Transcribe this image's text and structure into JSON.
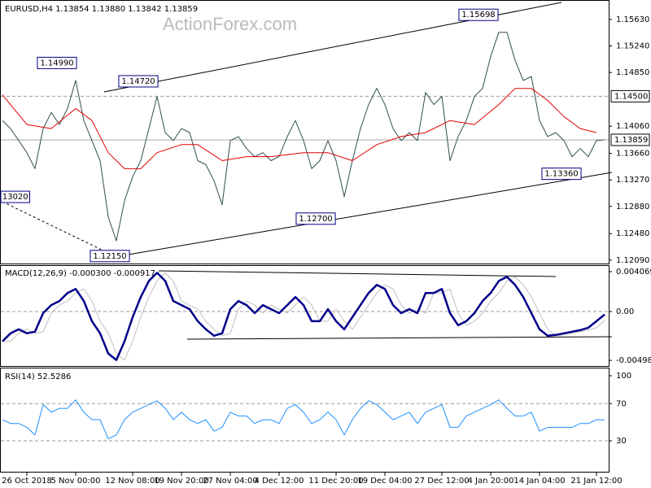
{
  "watermark": "ActionForex.com",
  "chart_data": [
    {
      "type": "line",
      "title": "EURUSD,H4  1.13854 1.13880 1.13842 1.13859",
      "xlim": [
        -0.3,
        74.5
      ],
      "ylim": [
        1.1204,
        1.1588
      ],
      "yticks": [
        {
          "value": 1.1563,
          "label": "1.15630"
        },
        {
          "value": 1.1524,
          "label": "1.15240"
        },
        {
          "value": 1.1485,
          "label": "1.14850"
        },
        {
          "value": 1.1406,
          "label": "1.14060"
        },
        {
          "value": 1.1366,
          "label": "1.13660"
        },
        {
          "value": 1.1327,
          "label": "1.13270"
        },
        {
          "value": 1.1288,
          "label": "1.12880"
        },
        {
          "value": 1.1248,
          "label": "1.12480"
        },
        {
          "value": 1.1209,
          "label": "1.12090"
        }
      ],
      "levels": [
        {
          "value": 1.145,
          "label": "1.14500"
        }
      ],
      "last": {
        "value": 1.13859,
        "label": "1.13859"
      },
      "series": [
        {
          "color": "#2f4f4f",
          "width": 1,
          "x": [
            0,
            1,
            2,
            3,
            4,
            5,
            6,
            7,
            8,
            9,
            10,
            11,
            12,
            13,
            14,
            15,
            16,
            17,
            18,
            19,
            20,
            21,
            22,
            23,
            24,
            25,
            26,
            27,
            28,
            29,
            30,
            31,
            32,
            33,
            34,
            35,
            36,
            37,
            38,
            39,
            40,
            41,
            42,
            43,
            44,
            45,
            46,
            47,
            48,
            49,
            50,
            51,
            52,
            53,
            54,
            55,
            56,
            57,
            58,
            59,
            60,
            61,
            62,
            63,
            64,
            65,
            66,
            67,
            68,
            69,
            70,
            71,
            72,
            73,
            74
          ],
          "values": [
            1.14143,
            1.14025,
            1.13848,
            1.13671,
            1.13435,
            1.14025,
            1.14261,
            1.14084,
            1.1432,
            1.14733,
            1.14143,
            1.13848,
            1.13553,
            1.12727,
            1.12373,
            1.12963,
            1.13317,
            1.13553,
            1.14025,
            1.14497,
            1.13966,
            1.13848,
            1.14025,
            1.13966,
            1.13553,
            1.13494,
            1.13258,
            1.12904,
            1.13848,
            1.13907,
            1.1373,
            1.13612,
            1.13671,
            1.13553,
            1.13612,
            1.13907,
            1.14143,
            1.13848,
            1.13435,
            1.13553,
            1.13848,
            1.13553,
            1.13022,
            1.13553,
            1.14025,
            1.14379,
            1.14615,
            1.14379,
            1.14025,
            1.13848,
            1.13966,
            1.13848,
            1.14556,
            1.14379,
            1.14497,
            1.13553,
            1.13907,
            1.14143,
            1.14497,
            1.14615,
            1.15087,
            1.15441,
            1.15441,
            1.15028,
            1.14733,
            1.14792,
            1.14143,
            1.13907,
            1.13966,
            1.13848,
            1.13612,
            1.1373,
            1.13612,
            1.13848,
            1.13859
          ]
        },
        {
          "color": "#e00000",
          "width": 1,
          "x": [
            0,
            3,
            6,
            9,
            11,
            13,
            15,
            17,
            19,
            22,
            24,
            27,
            30,
            33,
            37,
            40,
            43,
            46,
            49,
            52,
            55,
            58,
            61,
            63,
            65,
            67,
            69,
            71,
            73
          ],
          "values": [
            1.14521,
            1.14084,
            1.14025,
            1.1432,
            1.14143,
            1.13671,
            1.13435,
            1.13435,
            1.13671,
            1.13789,
            1.13789,
            1.13553,
            1.13612,
            1.13612,
            1.13671,
            1.13671,
            1.13553,
            1.13789,
            1.13907,
            1.13966,
            1.14143,
            1.14084,
            1.14379,
            1.14615,
            1.14615,
            1.14438,
            1.14202,
            1.14025,
            1.13966
          ]
        }
      ],
      "annotations": [
        {
          "text": "1.14990",
          "x": 6.7,
          "y": 1.1499
        },
        {
          "text": "1.14720",
          "x": 16.7,
          "y": 1.1472
        },
        {
          "text": "1.15698",
          "x": 58.5,
          "y": 1.15698
        },
        {
          "text": "13020",
          "x": 1.5,
          "y": 1.1302
        },
        {
          "text": "1.12150",
          "x": 13.2,
          "y": 1.1215
        },
        {
          "text": "1.12700",
          "x": 38.5,
          "y": 1.127
        },
        {
          "text": "1.13360",
          "x": 68.7,
          "y": 1.1336
        }
      ]
    },
    {
      "type": "line",
      "title": "MACD(12,26,9) -0.000300 -0.000917",
      "xlim": [
        -0.3,
        74.5
      ],
      "ylim": [
        -0.00539,
        0.004567
      ],
      "yticks": [
        0.004069,
        {
          "value": 0,
          "label": "0.00"
        },
        -0.004981
      ],
      "levels": [
        0
      ],
      "series": [
        {
          "color": "#c0c0c0",
          "width": 1,
          "x": [
            0,
            1,
            2,
            3,
            4,
            5,
            6,
            7,
            8,
            9,
            10,
            11,
            12,
            13,
            14,
            15,
            16,
            17,
            18,
            19,
            20,
            21,
            22,
            23,
            24,
            25,
            26,
            27,
            28,
            29,
            30,
            31,
            32,
            33,
            34,
            35,
            36,
            37,
            38,
            39,
            40,
            41,
            42,
            43,
            44,
            45,
            46,
            47,
            48,
            49,
            50,
            51,
            52,
            53,
            54,
            55,
            56,
            57,
            58,
            59,
            60,
            61,
            62,
            63,
            64,
            65,
            66,
            67,
            68,
            69,
            70,
            71,
            72,
            73,
            74
          ],
          "values": [
            -0.003045,
            -0.003045,
            -0.002222,
            -0.001811,
            -0.002222,
            -0.002058,
            -0.000165,
            0.000658,
            0.00107,
            0.001893,
            0.002304,
            0.00107,
            -0.000988,
            -0.002222,
            -0.00428,
            -0.004938,
            -0.003045,
            -0.000576,
            0.001481,
            0.003127,
            0.00395,
            0.003127,
            0.00107,
            0.000658,
            0.000247,
            -0.000988,
            -0.001811,
            -0.002469,
            -0.002222,
            0.000247,
            0.00107,
            0.000658,
            -0.000165,
            0.000658,
            0.000247,
            -0.000165,
            0.000658,
            0.001481,
            0.000658,
            -0.000988,
            -0.000988,
            0.000247,
            -0.000988,
            -0.001811,
            -0.000576,
            0.000658,
            0.001893,
            0.002716,
            0.002304,
            0.000658,
            -0.000165,
            0.000247,
            -0.000165,
            0.001893,
            0.001893,
            0.002304,
            -0.000165,
            -0.001399,
            -0.000988,
            -0.000165,
            0.00107,
            0.001893,
            0.003127,
            0.003539,
            0.002716,
            0.001481,
            -0.000165,
            -0.001811,
            -0.002469,
            -0.002387,
            -0.002222,
            -0.002058,
            -0.001893,
            -0.001646,
            -0.000917
          ]
        },
        {
          "color": "#00008b",
          "width": 2.5,
          "x": [
            0,
            1,
            2,
            3,
            4,
            5,
            6,
            7,
            8,
            9,
            10,
            11,
            12,
            13,
            14,
            15,
            16,
            17,
            18,
            19,
            20,
            21,
            22,
            23,
            24,
            25,
            26,
            27,
            28,
            29,
            30,
            31,
            32,
            33,
            34,
            35,
            36,
            37,
            38,
            39,
            40,
            41,
            42,
            43,
            44,
            45,
            46,
            47,
            48,
            49,
            50,
            51,
            52,
            53,
            54,
            55,
            56,
            57,
            58,
            59,
            60,
            61,
            62,
            63,
            64,
            65,
            66,
            67,
            68,
            69,
            70,
            71,
            72,
            73,
            74
          ],
          "values": [
            -0.003045,
            -0.002222,
            -0.001811,
            -0.002222,
            -0.002058,
            -0.000165,
            0.000658,
            0.00107,
            0.001893,
            0.002304,
            0.00107,
            -0.000988,
            -0.002222,
            -0.00428,
            -0.004938,
            -0.003045,
            -0.000576,
            0.001481,
            0.003127,
            0.00395,
            0.003127,
            0.00107,
            0.000658,
            0.000247,
            -0.000988,
            -0.001811,
            -0.002469,
            -0.002222,
            0.000247,
            0.00107,
            0.000658,
            -0.000165,
            0.000658,
            0.000247,
            -0.000165,
            0.000658,
            0.001481,
            0.000658,
            -0.000988,
            -0.000988,
            0.000247,
            -0.000988,
            -0.001811,
            -0.000576,
            0.000658,
            0.001893,
            0.002716,
            0.002304,
            0.000658,
            -0.000165,
            0.000247,
            -0.000165,
            0.001893,
            0.001893,
            0.002304,
            -0.000165,
            -0.001399,
            -0.000988,
            -0.000165,
            0.00107,
            0.001893,
            0.003127,
            0.003539,
            0.002716,
            0.001481,
            -0.000165,
            -0.001811,
            -0.002469,
            -0.002387,
            -0.002222,
            -0.002058,
            -0.001893,
            -0.001646,
            -0.000988,
            -0.0003
          ]
        }
      ]
    },
    {
      "type": "line",
      "title": "RSI(14) 52.5286",
      "xlim": [
        -0.3,
        74.5
      ],
      "ylim": [
        -1.5,
        106.1
      ],
      "yticks": [
        100,
        70,
        30
      ],
      "levels": [
        70,
        30
      ],
      "xticks": [
        {
          "value": 3,
          "label": "26 Oct 2018"
        },
        {
          "value": 9,
          "label": "5 Nov 00:00"
        },
        {
          "value": 16,
          "label": "12 Nov 08:00"
        },
        {
          "value": 22,
          "label": "19 Nov 20:00"
        },
        {
          "value": 28,
          "label": "27 Nov 04:00"
        },
        {
          "value": 34,
          "label": "4 Dec 12:00"
        },
        {
          "value": 41,
          "label": "11 Dec 20:00"
        },
        {
          "value": 47,
          "label": "19 Dec 04:00"
        },
        {
          "value": 54,
          "label": "27 Dec 12:00"
        },
        {
          "value": 60,
          "label": "4 Jan 20:00"
        },
        {
          "value": 66,
          "label": "14 Jan 04:00"
        },
        {
          "value": 73,
          "label": "21 Jan 12:00"
        }
      ],
      "series": [
        {
          "color": "#1e90ff",
          "width": 1,
          "x": [
            0,
            1,
            2,
            3,
            4,
            5,
            6,
            7,
            8,
            9,
            10,
            11,
            12,
            13,
            14,
            15,
            16,
            17,
            18,
            19,
            20,
            21,
            22,
            23,
            24,
            25,
            26,
            27,
            28,
            29,
            30,
            31,
            32,
            33,
            34,
            35,
            36,
            37,
            38,
            39,
            40,
            41,
            42,
            43,
            44,
            45,
            46,
            47,
            48,
            49,
            50,
            51,
            52,
            53,
            54,
            55,
            56,
            57,
            58,
            59,
            60,
            61,
            62,
            63,
            64,
            65,
            66,
            67,
            68,
            69,
            70,
            71,
            72,
            73,
            74
          ],
          "values": [
            52.7,
            48.6,
            48.6,
            44.5,
            36.4,
            69,
            60.8,
            64.9,
            64.9,
            74,
            60.8,
            52.7,
            52.7,
            32.3,
            36.4,
            52.7,
            60.8,
            64.9,
            69,
            73.1,
            64.9,
            52.7,
            60.8,
            52.7,
            48.6,
            52.7,
            40.4,
            44.5,
            60.8,
            56.8,
            56.8,
            48.6,
            52.7,
            52.7,
            48.6,
            64.9,
            69,
            60.8,
            48.6,
            52.7,
            60.8,
            52.7,
            36.4,
            52.7,
            64.9,
            73.1,
            69,
            60.8,
            52.7,
            56.8,
            60.8,
            48.6,
            60.8,
            64.9,
            69,
            44.5,
            44.5,
            56.8,
            60.8,
            64.9,
            69,
            74,
            64.9,
            56.8,
            56.8,
            60.8,
            40.4,
            44.5,
            44.5,
            44.5,
            44.5,
            48.6,
            48.6,
            52.7,
            52.5286
          ]
        }
      ]
    }
  ]
}
